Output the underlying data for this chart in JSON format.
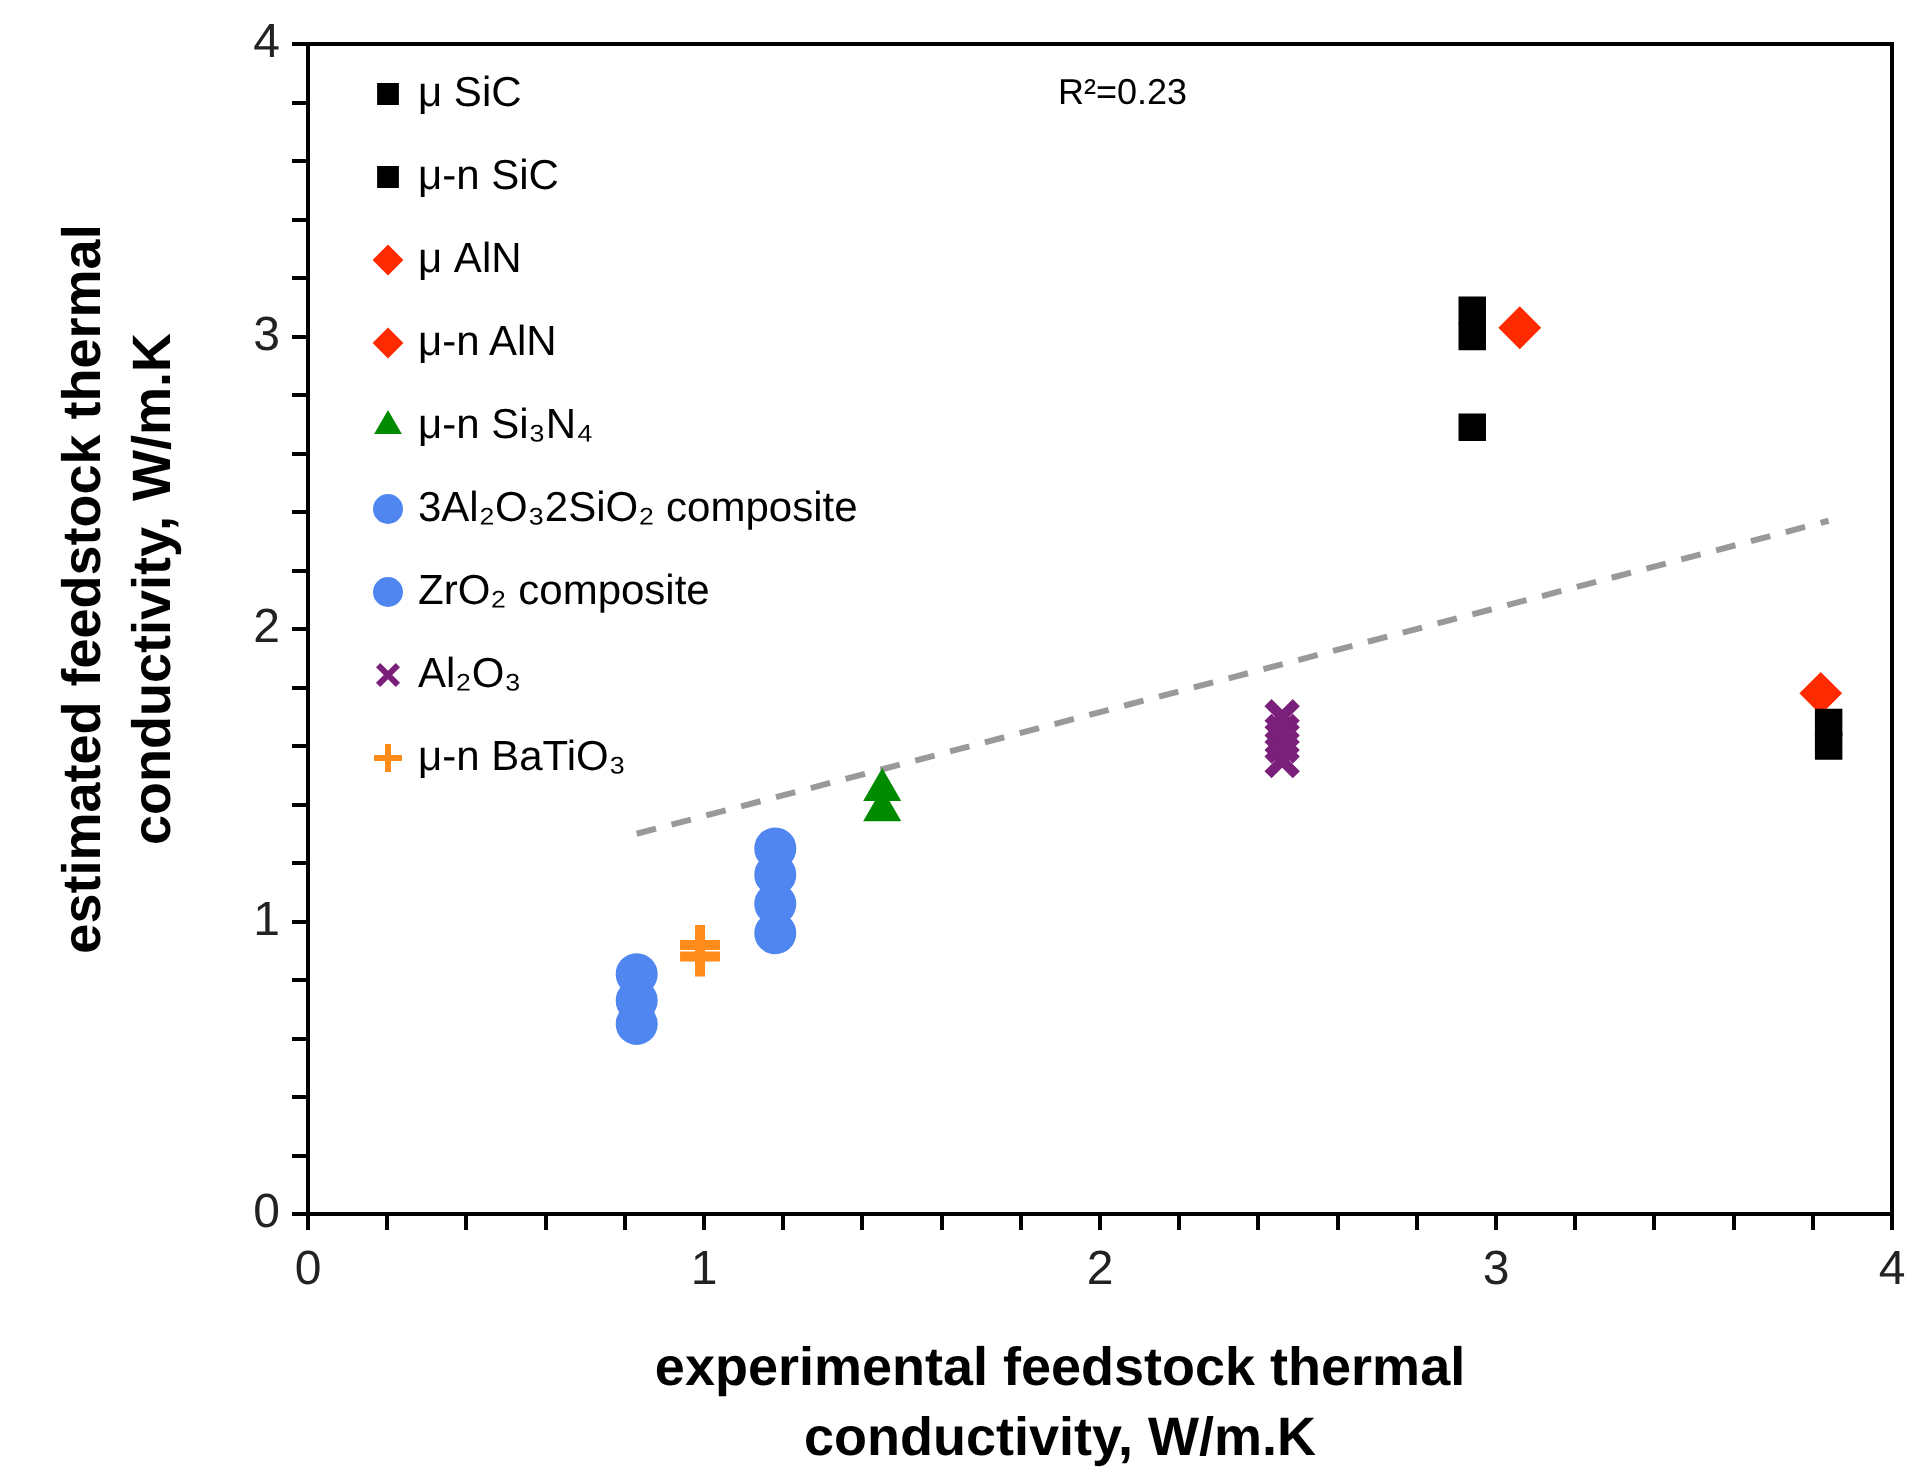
{
  "chart_data": {
    "type": "scatter",
    "xlabel": "experimental feedstock thermal conductivity, W/m.K",
    "ylabel": "estimated feedstock thermal conductivity, W/m.K",
    "xlim": [
      0,
      4
    ],
    "ylim": [
      0,
      4
    ],
    "xticks": [
      0,
      {
        "value": 0.2,
        "label": null
      },
      {
        "value": 0.4,
        "label": null
      },
      {
        "value": 0.6,
        "label": null
      },
      {
        "value": 0.8,
        "label": null
      },
      1,
      {
        "value": 1.2,
        "label": null
      },
      {
        "value": 1.4,
        "label": null
      },
      {
        "value": 1.6,
        "label": null
      },
      {
        "value": 1.8,
        "label": null
      },
      2,
      {
        "value": 2.2,
        "label": null
      },
      {
        "value": 2.4,
        "label": null
      },
      {
        "value": 2.6,
        "label": null
      },
      {
        "value": 2.8,
        "label": null
      },
      3,
      {
        "value": 3.2,
        "label": null
      },
      {
        "value": 3.4,
        "label": null
      },
      {
        "value": 3.6,
        "label": null
      },
      {
        "value": 3.8,
        "label": null
      },
      4
    ],
    "yticks": [
      0,
      {
        "value": 0.2,
        "label": null
      },
      {
        "value": 0.4,
        "label": null
      },
      {
        "value": 0.6,
        "label": null
      },
      {
        "value": 0.8,
        "label": null
      },
      1,
      {
        "value": 1.2,
        "label": null
      },
      {
        "value": 1.4,
        "label": null
      },
      {
        "value": 1.6,
        "label": null
      },
      {
        "value": 1.8,
        "label": null
      },
      2,
      {
        "value": 2.2,
        "label": null
      },
      {
        "value": 2.4,
        "label": null
      },
      {
        "value": 2.6,
        "label": null
      },
      {
        "value": 2.8,
        "label": null
      },
      3,
      {
        "value": 3.2,
        "label": null
      },
      {
        "value": 3.4,
        "label": null
      },
      {
        "value": 3.6,
        "label": null
      },
      {
        "value": 3.8,
        "label": null
      },
      4
    ],
    "grid": false,
    "legend": "top left",
    "annotations": [
      "R²=0.23"
    ],
    "series": [
      {
        "name": "μ SiC",
        "color": "#000000",
        "marker": "square",
        "x": [
          2.94,
          2.94,
          3.84,
          3.84
        ],
        "values": [
          3.0,
          3.09,
          1.6,
          1.68
        ]
      },
      {
        "name": "μ-n SiC",
        "color": "#000000",
        "marker": "square",
        "x": [
          2.94
        ],
        "values": [
          2.69
        ]
      },
      {
        "name": "μ AlN",
        "color": "#ff2a00",
        "marker": "diamond",
        "x": [
          3.82
        ],
        "values": [
          1.78
        ]
      },
      {
        "name": "μ-n AlN",
        "color": "#ff2a00",
        "marker": "diamond",
        "x": [
          3.06
        ],
        "values": [
          3.03
        ]
      },
      {
        "name": "μ-n Si₃N₄",
        "color": "#008a00",
        "marker": "triangle",
        "x": [
          1.45,
          1.45
        ],
        "values": [
          1.38,
          1.45
        ]
      },
      {
        "name": "3Al₂O₃2SiO₂ composite",
        "color": "#4f86f0",
        "marker": "circle",
        "x": [
          1.18,
          1.18,
          1.18,
          1.18
        ],
        "values": [
          0.96,
          1.06,
          1.16,
          1.25
        ]
      },
      {
        "name": "ZrO₂ composite",
        "color": "#4f86f0",
        "marker": "circle",
        "x": [
          0.83,
          0.83,
          0.83
        ],
        "values": [
          0.65,
          0.73,
          0.82
        ]
      },
      {
        "name": "Al₂O₃",
        "color": "#7a1f7a",
        "marker": "cross",
        "x": [
          2.46,
          2.46,
          2.46,
          2.46
        ],
        "values": [
          1.55,
          1.6,
          1.65,
          1.7
        ]
      },
      {
        "name": "μ-n BaTiO₃",
        "color": "#ff8c1a",
        "marker": "plus",
        "x": [
          0.99,
          0.99
        ],
        "values": [
          0.88,
          0.92
        ]
      },
      {
        "type": "line",
        "color": "#999999",
        "line_style": "dashed",
        "marker": "none",
        "x": [
          0.83,
          3.84
        ],
        "values": [
          1.3,
          2.37
        ]
      }
    ]
  }
}
